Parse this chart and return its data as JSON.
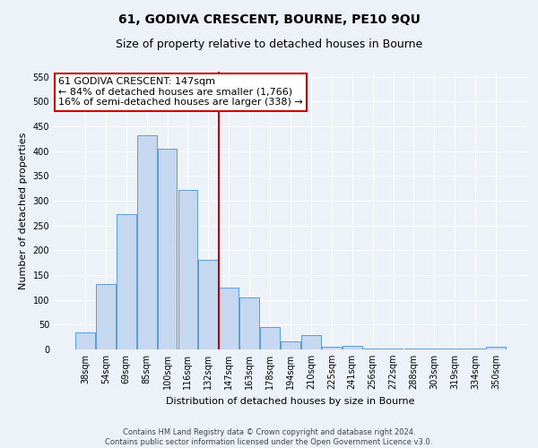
{
  "title": "61, GODIVA CRESCENT, BOURNE, PE10 9QU",
  "subtitle": "Size of property relative to detached houses in Bourne",
  "xlabel": "Distribution of detached houses by size in Bourne",
  "ylabel": "Number of detached properties",
  "categories": [
    "38sqm",
    "54sqm",
    "69sqm",
    "85sqm",
    "100sqm",
    "116sqm",
    "132sqm",
    "147sqm",
    "163sqm",
    "178sqm",
    "194sqm",
    "210sqm",
    "225sqm",
    "241sqm",
    "256sqm",
    "272sqm",
    "288sqm",
    "303sqm",
    "319sqm",
    "334sqm",
    "350sqm"
  ],
  "bar_values": [
    35,
    132,
    272,
    432,
    405,
    322,
    181,
    125,
    104,
    45,
    17,
    29,
    5,
    7,
    2,
    2,
    2,
    2,
    2,
    2,
    5
  ],
  "bar_color": "#c5d8f0",
  "bar_edge_color": "#5b9bd5",
  "reference_line_index": 7,
  "annotation_text": "61 GODIVA CRESCENT: 147sqm\n← 84% of detached houses are smaller (1,766)\n16% of semi-detached houses are larger (338) →",
  "annotation_box_color": "#ffffff",
  "annotation_box_edge_color": "#cc0000",
  "ylim": [
    0,
    560
  ],
  "yticks": [
    0,
    50,
    100,
    150,
    200,
    250,
    300,
    350,
    400,
    450,
    500,
    550
  ],
  "footer_text": "Contains HM Land Registry data © Crown copyright and database right 2024.\nContains public sector information licensed under the Open Government Licence v3.0.",
  "bg_color": "#edf2f9",
  "grid_color": "#ffffff",
  "title_fontsize": 10,
  "subtitle_fontsize": 9,
  "tick_fontsize": 7,
  "ylabel_fontsize": 8,
  "xlabel_fontsize": 8,
  "footer_fontsize": 6,
  "annotation_fontsize": 8
}
